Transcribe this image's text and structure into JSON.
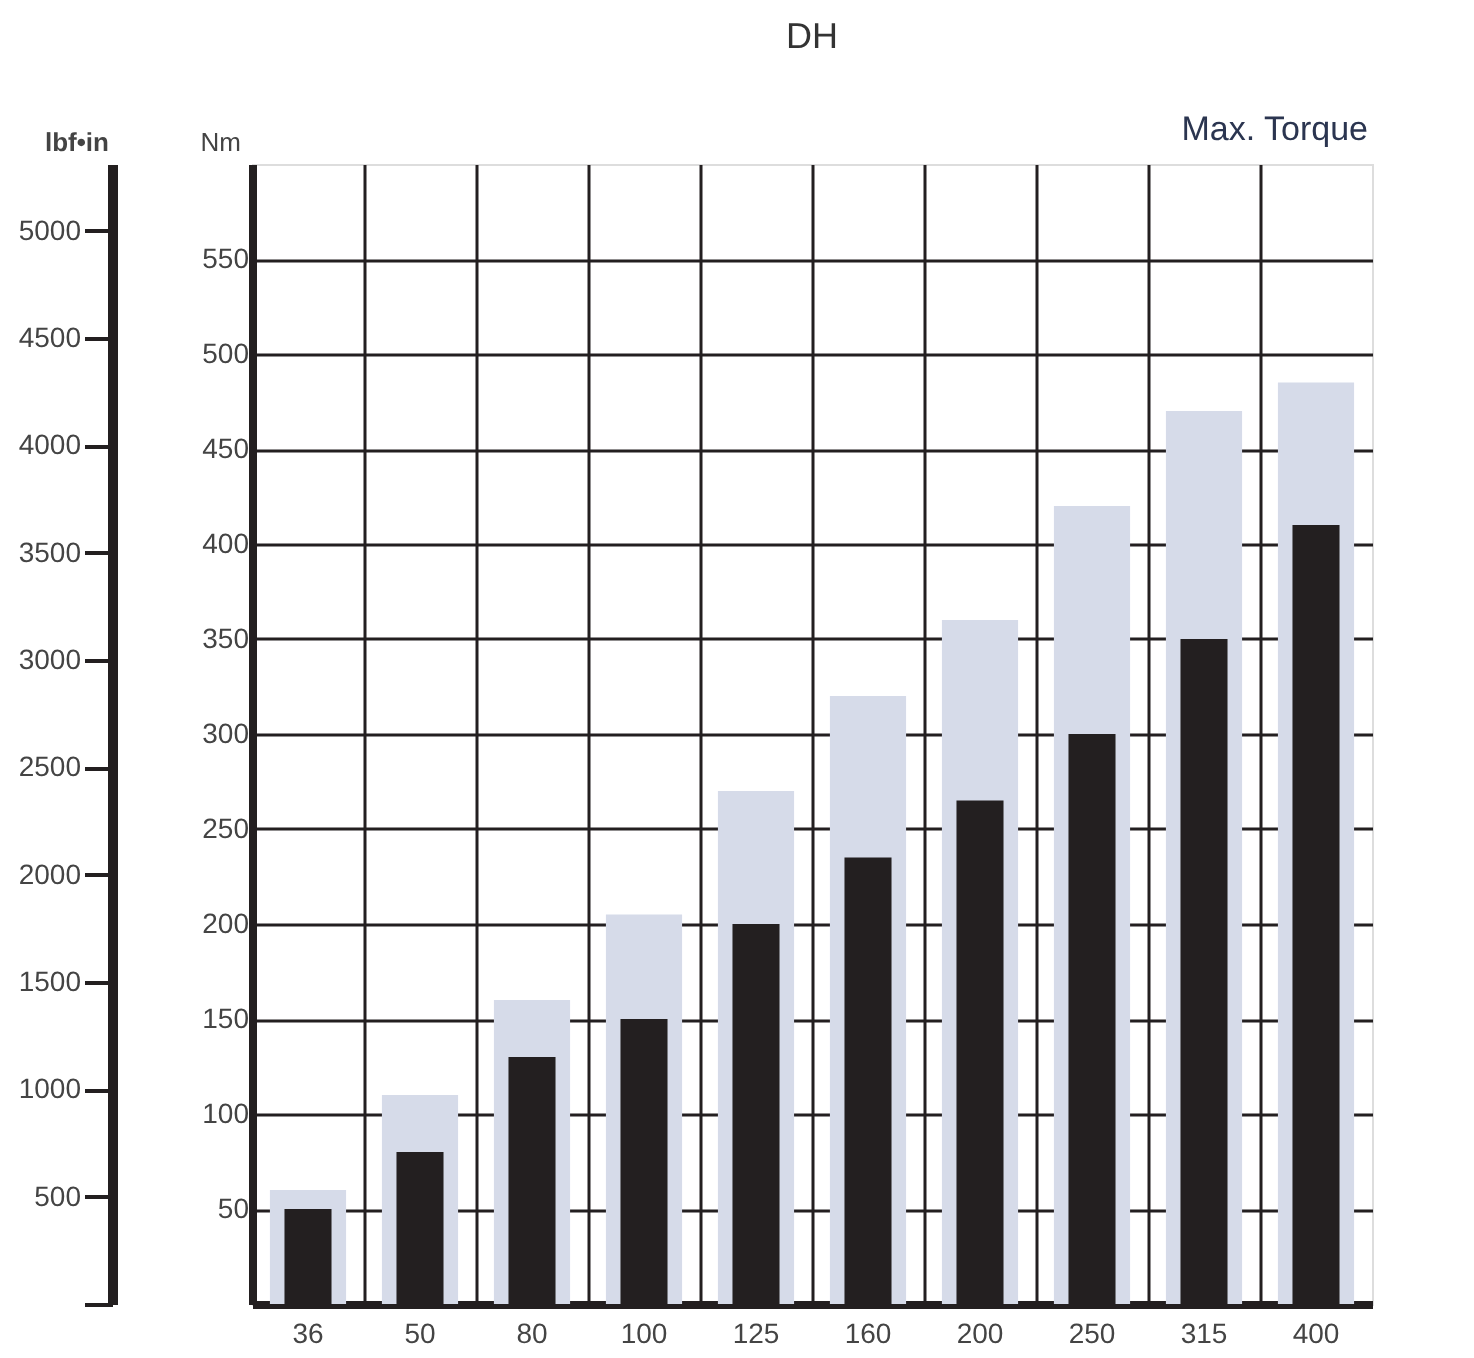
{
  "chart_data": {
    "type": "bar",
    "title": "DH",
    "annotations": [
      "Max. Torque"
    ],
    "ylabel": "Nm",
    "y2label": "lbf•in",
    "categories": [
      "36",
      "50",
      "80",
      "100",
      "125",
      "160",
      "200",
      "250",
      "315",
      "400"
    ],
    "series": [
      {
        "color": "#d6dbe9",
        "values": [
          60,
          110,
          160,
          205,
          270,
          320,
          360,
          420,
          470,
          485
        ]
      },
      {
        "color": "#231f20",
        "values": [
          50,
          80,
          130,
          150,
          200,
          235,
          265,
          300,
          350,
          410
        ]
      }
    ],
    "ylim": [
      0,
      600
    ],
    "yticks": [
      50,
      100,
      150,
      200,
      250,
      300,
      350,
      400,
      450,
      500,
      550
    ],
    "y2lim": [
      0,
      5310
    ],
    "y2ticks": [
      {
        "value": 0,
        "label": null
      },
      500,
      1000,
      1500,
      2000,
      2500,
      3000,
      3500,
      4000,
      4500,
      5000
    ],
    "grid": true
  }
}
